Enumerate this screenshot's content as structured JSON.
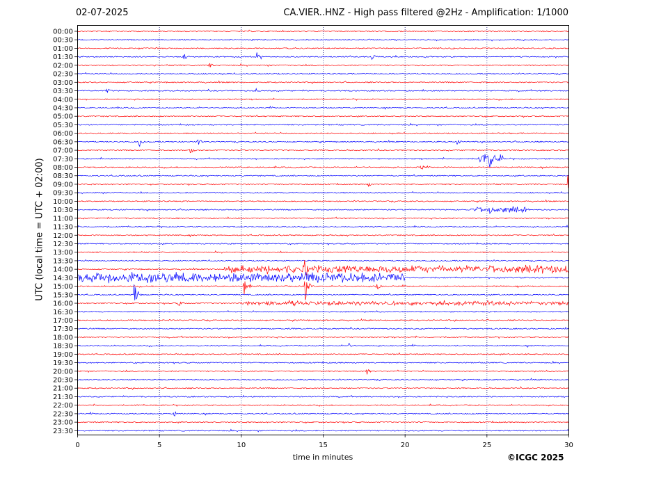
{
  "header": {
    "date": "02-07-2025",
    "title": "CA.VIER..HNZ - High pass filtered @2Hz - Amplification: 1/1000"
  },
  "footer": {
    "credit": "©ICGC 2025"
  },
  "colors": {
    "red_trace": "#ff0000",
    "blue_trace": "#0000ff",
    "grid": "#1a1a80",
    "frame": "#000000"
  },
  "chart_data": {
    "type": "line",
    "title": "CA.VIER..HNZ - High pass filtered @2Hz - Amplification: 1/1000",
    "xlabel": "time in minutes",
    "ylabel": "UTC (local time = UTC + 02:00)",
    "xlim": [
      0,
      30
    ],
    "x_ticks": [
      "0",
      "5",
      "10",
      "15",
      "20",
      "25",
      "30"
    ],
    "grid": "vertical dotted at 5-minute intervals",
    "rows": [
      "00:00",
      "00:30",
      "01:00",
      "01:30",
      "02:00",
      "02:30",
      "03:00",
      "03:30",
      "04:00",
      "04:30",
      "05:00",
      "05:30",
      "06:00",
      "06:30",
      "07:00",
      "07:30",
      "08:00",
      "08:30",
      "09:00",
      "09:30",
      "10:00",
      "10:30",
      "11:00",
      "11:30",
      "12:00",
      "12:30",
      "13:00",
      "13:30",
      "14:00",
      "14:30",
      "15:00",
      "15:30",
      "16:00",
      "16:30",
      "17:00",
      "17:30",
      "18:00",
      "18:30",
      "19:00",
      "19:30",
      "20:00",
      "20:30",
      "21:00",
      "21:30",
      "22:00",
      "22:30",
      "23:00",
      "23:30"
    ],
    "row_colors": [
      "red",
      "blue",
      "red",
      "blue",
      "red",
      "blue",
      "red",
      "blue",
      "red",
      "blue",
      "red",
      "blue",
      "red",
      "blue",
      "red",
      "blue",
      "red",
      "blue",
      "red",
      "blue",
      "red",
      "blue",
      "red",
      "blue",
      "red",
      "blue",
      "red",
      "blue",
      "red",
      "blue",
      "red",
      "blue",
      "red",
      "blue",
      "red",
      "blue",
      "red",
      "blue",
      "red",
      "blue",
      "red",
      "blue",
      "red",
      "blue",
      "red",
      "blue",
      "red",
      "blue"
    ],
    "events": [
      {
        "row": "01:30",
        "minute": 6.5,
        "amp": 0.5
      },
      {
        "row": "01:30",
        "minute": 11.0,
        "amp": 0.6
      },
      {
        "row": "01:30",
        "minute": 18.0,
        "amp": 0.4
      },
      {
        "row": "02:00",
        "minute": 8.1,
        "amp": 0.4
      },
      {
        "row": "03:30",
        "minute": 1.8,
        "amp": 0.4
      },
      {
        "row": "03:30",
        "minute": 10.9,
        "amp": 0.4
      },
      {
        "row": "06:30",
        "minute": 3.8,
        "amp": 0.6
      },
      {
        "row": "06:30",
        "minute": 7.4,
        "amp": 0.4
      },
      {
        "row": "06:30",
        "minute": 23.2,
        "amp": 0.4
      },
      {
        "row": "07:00",
        "minute": 6.9,
        "amp": 0.6
      },
      {
        "row": "07:30",
        "minute": 25.2,
        "amp": 1.4
      },
      {
        "row": "08:00",
        "minute": 21.0,
        "amp": 0.4
      },
      {
        "row": "09:00",
        "minute": 17.8,
        "amp": 0.3
      },
      {
        "row": "09:00",
        "minute": 30.0,
        "amp": 1.0
      },
      {
        "row": "10:30",
        "minute": 25.2,
        "amp": 0.6
      },
      {
        "row": "14:00",
        "minute": 13.9,
        "amp": 1.2
      },
      {
        "row": "14:30",
        "minute": 3.5,
        "amp": 0.4
      },
      {
        "row": "15:00",
        "minute": 10.2,
        "amp": 1.4
      },
      {
        "row": "15:00",
        "minute": 13.9,
        "amp": 2.0
      },
      {
        "row": "15:00",
        "minute": 18.3,
        "amp": 0.6
      },
      {
        "row": "15:30",
        "minute": 3.5,
        "amp": 1.6
      },
      {
        "row": "16:00",
        "minute": 6.2,
        "amp": 0.4
      },
      {
        "row": "18:30",
        "minute": 16.6,
        "amp": 0.3
      },
      {
        "row": "20:00",
        "minute": 17.7,
        "amp": 0.4
      },
      {
        "row": "22:30",
        "minute": 5.9,
        "amp": 0.4
      }
    ],
    "noisy_rows": [
      {
        "row": "14:00",
        "from": 9.0,
        "to": 30.0,
        "level": 0.35
      },
      {
        "row": "14:30",
        "from": 0.0,
        "to": 20.0,
        "level": 0.45
      },
      {
        "row": "16:00",
        "from": 10.0,
        "to": 30.0,
        "level": 0.2
      },
      {
        "row": "10:30",
        "from": 24.0,
        "to": 27.5,
        "level": 0.25
      },
      {
        "row": "07:30",
        "from": 24.5,
        "to": 26.0,
        "level": 0.4
      }
    ]
  }
}
